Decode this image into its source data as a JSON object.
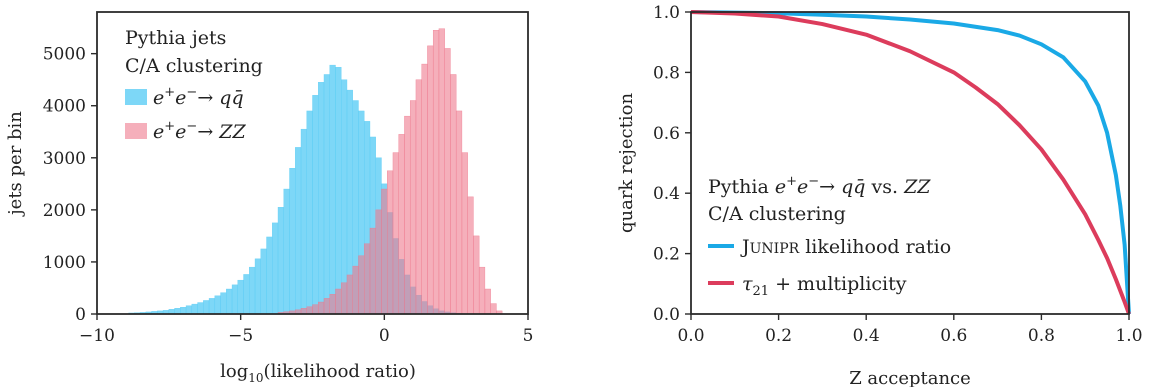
{
  "chart_data": [
    {
      "type": "bar",
      "subtype": "histogram",
      "xlabel": "log10(likelihood ratio)",
      "ylabel": "jets per bin",
      "xlim": [
        -10,
        5
      ],
      "ylim": [
        0,
        5800
      ],
      "xticks": [
        "−10",
        "−5",
        "0",
        "5"
      ],
      "xtick_values": [
        -10,
        -5,
        0,
        5
      ],
      "yticks": [
        "0",
        "1000",
        "2000",
        "3000",
        "4000",
        "5000"
      ],
      "ytick_values": [
        0,
        1000,
        2000,
        3000,
        4000,
        5000
      ],
      "grid": false,
      "legend_position": "top-left",
      "legend_title": [
        "Pythia jets",
        "C/A clustering"
      ],
      "series": [
        {
          "name": "e⁺e⁻→ qq̄",
          "color": "#5ccdf5",
          "opacity": 0.8,
          "x": [
            -8.8,
            -8.6,
            -8.4,
            -8.2,
            -8.0,
            -7.8,
            -7.6,
            -7.4,
            -7.2,
            -7.0,
            -6.8,
            -6.6,
            -6.4,
            -6.2,
            -6.0,
            -5.8,
            -5.6,
            -5.4,
            -5.2,
            -5.0,
            -4.8,
            -4.6,
            -4.4,
            -4.2,
            -4.0,
            -3.8,
            -3.6,
            -3.4,
            -3.2,
            -3.0,
            -2.8,
            -2.6,
            -2.4,
            -2.2,
            -2.0,
            -1.8,
            -1.6,
            -1.4,
            -1.2,
            -1.0,
            -0.8,
            -0.6,
            -0.4,
            -0.2,
            0.0,
            0.2,
            0.4,
            0.6,
            0.8,
            1.0,
            1.2,
            1.4,
            1.6,
            1.8,
            2.0,
            2.2,
            2.4,
            2.6,
            2.8,
            3.0
          ],
          "values": [
            20,
            25,
            30,
            40,
            50,
            60,
            70,
            90,
            110,
            130,
            160,
            190,
            220,
            260,
            300,
            350,
            410,
            480,
            560,
            650,
            760,
            900,
            1060,
            1250,
            1480,
            1750,
            2050,
            2400,
            2800,
            3200,
            3550,
            3900,
            4200,
            4450,
            4600,
            4780,
            4740,
            4500,
            4300,
            4100,
            3900,
            3700,
            3400,
            3000,
            2500,
            1950,
            1450,
            1050,
            750,
            520,
            360,
            240,
            160,
            100,
            60,
            40,
            25,
            15,
            8,
            4
          ]
        },
        {
          "name": "e⁺e⁻→ ZZ",
          "color": "#ee7a8e",
          "opacity": 0.6,
          "x": [
            -3.6,
            -3.4,
            -3.2,
            -3.0,
            -2.8,
            -2.6,
            -2.4,
            -2.2,
            -2.0,
            -1.8,
            -1.6,
            -1.4,
            -1.2,
            -1.0,
            -0.8,
            -0.6,
            -0.4,
            -0.2,
            0.0,
            0.2,
            0.4,
            0.6,
            0.8,
            1.0,
            1.2,
            1.4,
            1.6,
            1.8,
            2.0,
            2.2,
            2.4,
            2.6,
            2.8,
            3.0,
            3.2,
            3.4,
            3.6,
            3.8,
            4.0
          ],
          "values": [
            30,
            45,
            60,
            80,
            110,
            140,
            180,
            230,
            300,
            380,
            480,
            600,
            750,
            920,
            1120,
            1350,
            1650,
            2000,
            2400,
            2750,
            3100,
            3450,
            3800,
            4100,
            4500,
            4800,
            5150,
            5450,
            5480,
            5100,
            4600,
            3900,
            3100,
            2250,
            1500,
            900,
            480,
            200,
            60
          ]
        }
      ]
    },
    {
      "type": "line",
      "xlabel": "Z acceptance",
      "ylabel": "quark rejection",
      "xlim": [
        0,
        1
      ],
      "ylim": [
        0,
        1
      ],
      "xticks": [
        "0.0",
        "0.2",
        "0.4",
        "0.6",
        "0.8",
        "1.0"
      ],
      "xtick_values": [
        0,
        0.2,
        0.4,
        0.6,
        0.8,
        1.0
      ],
      "yticks": [
        "0.0",
        "0.2",
        "0.4",
        "0.6",
        "0.8",
        "1.0"
      ],
      "ytick_values": [
        0,
        0.2,
        0.4,
        0.6,
        0.8,
        1.0
      ],
      "grid": false,
      "legend_position": "bottom-left",
      "legend_title": [
        "Pythia e⁺e⁻→ qq̄ vs. ZZ",
        "C/A clustering"
      ],
      "series": [
        {
          "name": "JUNIPR likelihood ratio",
          "color": "#1aa9e6",
          "x": [
            0.0,
            0.1,
            0.2,
            0.3,
            0.4,
            0.5,
            0.6,
            0.7,
            0.75,
            0.8,
            0.85,
            0.9,
            0.93,
            0.95,
            0.97,
            0.98,
            0.99,
            1.0
          ],
          "y": [
            1.0,
            0.998,
            0.996,
            0.991,
            0.985,
            0.975,
            0.962,
            0.94,
            0.922,
            0.893,
            0.85,
            0.77,
            0.69,
            0.6,
            0.46,
            0.36,
            0.23,
            0.0
          ]
        },
        {
          "name": "τ21 + multiplicity",
          "color": "#dc3c5c",
          "x": [
            0.0,
            0.1,
            0.2,
            0.3,
            0.4,
            0.5,
            0.6,
            0.65,
            0.7,
            0.75,
            0.8,
            0.85,
            0.9,
            0.93,
            0.95,
            0.97,
            0.99,
            1.0
          ],
          "y": [
            1.0,
            0.995,
            0.985,
            0.96,
            0.925,
            0.87,
            0.8,
            0.75,
            0.695,
            0.625,
            0.545,
            0.445,
            0.33,
            0.245,
            0.185,
            0.115,
            0.04,
            0.0
          ]
        }
      ]
    }
  ],
  "legends": {
    "hist_title_1": "Pythia jets",
    "hist_title_2": "C/A clustering",
    "roc_title_1_pre": "Pythia",
    "roc_title_1_mid": "vs.",
    "roc_title_2": "C/A clustering",
    "roc_item_1_caps": "J",
    "roc_item_1_small": "UNIPR",
    "roc_item_1_rest": " likelihood ratio",
    "roc_item_2_rest": " + multiplicity"
  }
}
